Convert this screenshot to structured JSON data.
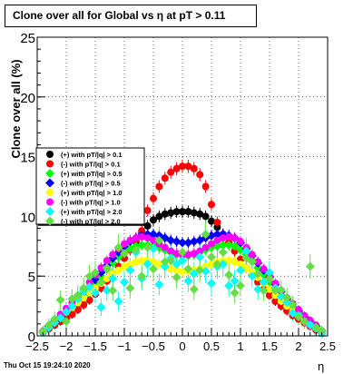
{
  "title": "Clone  over all for Global vs   η at pT > 0.11",
  "timestamp": "Thu Oct 15 19:24:10 2020",
  "chart_data": {
    "type": "scatter",
    "title": "Clone  over all for Global vs   η at pT > 0.11",
    "xlabel": "η",
    "ylabel": "Clone  over all (%)",
    "xlim": [
      -2.5,
      2.5
    ],
    "ylim": [
      0,
      25
    ],
    "xticks": [
      "−2.5",
      "−2",
      "−1.5",
      "−1",
      "−0.5",
      "0",
      "0.5",
      "1",
      "1.5",
      "2",
      "2.5"
    ],
    "yticks": [
      "0",
      "5",
      "10",
      "15",
      "20",
      "25"
    ],
    "grid": true,
    "legend_position": "left",
    "x": [
      -2.4,
      -2.3,
      -2.2,
      -2.1,
      -2.0,
      -1.9,
      -1.8,
      -1.7,
      -1.6,
      -1.5,
      -1.4,
      -1.3,
      -1.2,
      -1.1,
      -1.0,
      -0.9,
      -0.8,
      -0.7,
      -0.6,
      -0.5,
      -0.4,
      -0.3,
      -0.2,
      -0.1,
      0.0,
      0.1,
      0.2,
      0.3,
      0.4,
      0.5,
      0.6,
      0.7,
      0.8,
      0.9,
      1.0,
      1.1,
      1.2,
      1.3,
      1.4,
      1.5,
      1.6,
      1.7,
      1.8,
      1.9,
      2.0,
      2.1,
      2.2,
      2.3,
      2.4
    ],
    "series": [
      {
        "name": "(+) with pT/|q| > 0.1",
        "color": "#000000",
        "values": [
          0.3,
          0.6,
          0.9,
          1.2,
          1.5,
          1.8,
          2.2,
          2.6,
          3.0,
          3.5,
          4.0,
          4.6,
          5.2,
          5.8,
          6.5,
          7.2,
          7.9,
          8.6,
          9.2,
          9.7,
          10.0,
          10.2,
          10.3,
          10.4,
          10.4,
          10.4,
          10.3,
          10.2,
          10.0,
          9.6,
          9.1,
          8.5,
          7.8,
          7.1,
          6.4,
          5.7,
          5.1,
          4.5,
          3.9,
          3.4,
          2.9,
          2.5,
          2.1,
          1.7,
          1.4,
          1.1,
          0.8,
          0.5,
          0.2
        ]
      },
      {
        "name": "(-) with pT/|q| > 0.1",
        "color": "#ff0000",
        "values": [
          0.3,
          0.6,
          0.9,
          1.2,
          1.5,
          1.8,
          2.2,
          2.6,
          3.0,
          3.5,
          4.0,
          4.6,
          5.2,
          5.8,
          6.5,
          7.2,
          8.0,
          8.8,
          10.5,
          11.5,
          12.5,
          13.2,
          13.7,
          14.0,
          14.2,
          14.2,
          14.0,
          13.5,
          12.5,
          11.0,
          9.5,
          8.5,
          7.8,
          7.1,
          6.4,
          5.7,
          5.1,
          4.5,
          3.9,
          3.4,
          2.9,
          2.5,
          2.1,
          1.7,
          1.4,
          1.1,
          0.8,
          0.5,
          0.2
        ]
      },
      {
        "name": "(+) with pT/|q| > 0.5",
        "color": "#00ff00",
        "values": [
          0.4,
          0.8,
          1.2,
          1.6,
          2.0,
          2.4,
          2.8,
          3.3,
          3.8,
          4.4,
          5.0,
          5.6,
          6.1,
          6.6,
          7.0,
          7.3,
          7.5,
          7.6,
          7.6,
          7.5,
          7.4,
          7.2,
          7.0,
          6.8,
          6.7,
          6.7,
          6.8,
          7.0,
          7.2,
          7.4,
          7.5,
          7.6,
          7.6,
          7.5,
          7.2,
          6.8,
          6.3,
          5.7,
          5.1,
          4.5,
          3.9,
          3.4,
          2.9,
          2.4,
          2.0,
          1.6,
          1.2,
          0.8,
          0.4
        ]
      },
      {
        "name": "(-) with pT/|q| > 0.5",
        "color": "#0000ff",
        "values": [
          0.4,
          0.8,
          1.2,
          1.6,
          2.0,
          2.5,
          3.0,
          3.5,
          4.1,
          4.7,
          5.3,
          5.9,
          6.5,
          7.0,
          7.5,
          7.9,
          8.2,
          8.4,
          8.5,
          8.5,
          8.4,
          8.2,
          8.0,
          7.9,
          7.8,
          7.8,
          7.9,
          8.0,
          8.2,
          8.4,
          8.5,
          8.5,
          8.4,
          8.2,
          7.8,
          7.3,
          6.7,
          6.1,
          5.5,
          4.9,
          4.3,
          3.7,
          3.1,
          2.6,
          2.1,
          1.6,
          1.2,
          0.8,
          0.4
        ]
      },
      {
        "name": "(+) with pT/|q| > 1.0",
        "color": "#ffff00",
        "values": [
          0.4,
          0.8,
          1.2,
          1.6,
          2.0,
          2.4,
          2.8,
          3.2,
          3.6,
          4.0,
          4.4,
          4.8,
          5.2,
          5.5,
          5.8,
          6.0,
          6.2,
          6.3,
          6.3,
          6.2,
          6.0,
          5.8,
          5.6,
          5.5,
          5.4,
          5.4,
          5.5,
          5.6,
          5.8,
          6.0,
          6.2,
          6.3,
          6.3,
          6.2,
          6.0,
          5.7,
          5.3,
          4.9,
          4.4,
          3.9,
          3.4,
          2.9,
          2.5,
          2.1,
          1.7,
          1.3,
          1.0,
          0.7,
          0.3
        ]
      },
      {
        "name": "(-) with pT/|q| > 1.0",
        "color": "#ff00ff",
        "values": [
          0.4,
          0.8,
          1.3,
          1.8,
          2.3,
          2.8,
          3.3,
          3.9,
          4.5,
          5.1,
          5.7,
          6.3,
          6.8,
          7.3,
          7.7,
          8.0,
          8.2,
          8.3,
          8.2,
          8.0,
          7.7,
          7.4,
          7.1,
          6.9,
          6.8,
          6.8,
          6.9,
          7.1,
          7.4,
          7.7,
          8.0,
          8.2,
          8.3,
          8.2,
          7.9,
          7.4,
          6.8,
          6.2,
          5.6,
          5.0,
          4.4,
          3.8,
          3.2,
          2.7,
          2.2,
          1.7,
          1.3,
          0.9,
          0.4
        ]
      },
      {
        "name": "(+) with pT/|q| > 2.0",
        "color": "#00ffff",
        "values": [
          0.3,
          0.7,
          1.1,
          1.5,
          2.0,
          2.5,
          3.1,
          3.7,
          4.1,
          3.6,
          2.4,
          3.8,
          4.8,
          2.9,
          4.5,
          5.5,
          7.0,
          4.8,
          6.0,
          7.3,
          4.3,
          5.8,
          6.5,
          6.0,
          6.3,
          4.6,
          5.2,
          6.6,
          5.4,
          4.4,
          5.8,
          6.0,
          4.2,
          4.6,
          5.5,
          7.1,
          5.0,
          3.9,
          4.5,
          5.3,
          4.0,
          3.3,
          2.8,
          1.9,
          1.7,
          1.2,
          0.9,
          0.6,
          0.2
        ]
      },
      {
        "name": "(-) with pT/|q| > 2.0",
        "color": "#66dd44",
        "values": [
          0.4,
          0.9,
          1.4,
          3.0,
          1.2,
          3.1,
          3.4,
          4.0,
          5.0,
          5.3,
          4.5,
          5.7,
          3.8,
          7.4,
          6.9,
          4.0,
          7.2,
          5.0,
          7.4,
          5.6,
          8.0,
          6.2,
          6.3,
          4.9,
          7.0,
          5.6,
          3.9,
          5.5,
          8.5,
          6.6,
          6.0,
          7.0,
          5.1,
          3.6,
          4.2,
          6.5,
          6.2,
          5.2,
          3.8,
          4.8,
          3.8,
          3.8,
          3.2,
          2.6,
          1.6,
          1.2,
          5.8,
          0.7,
          0.4
        ]
      }
    ]
  }
}
